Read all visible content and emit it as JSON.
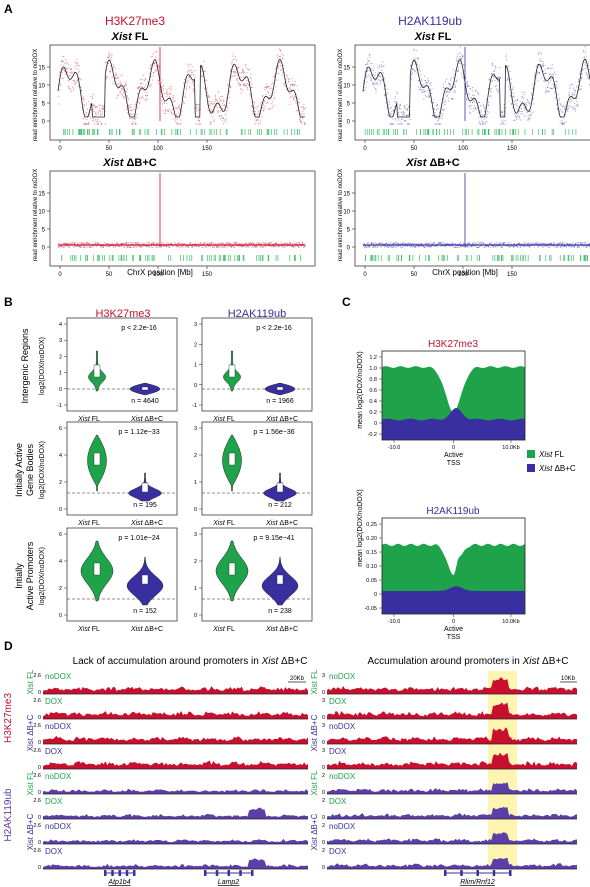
{
  "colors": {
    "red": "#c8102e",
    "blue": "#3a2fa0",
    "purple": "#5b3ea8",
    "green": "#1fa34a",
    "lightgreen": "#3fbf6a",
    "highlight": "#fff4b0"
  },
  "panelA": {
    "letter": "A",
    "h3k27me3": "H3K27me3",
    "h2ak119ub": "H2AK119ub",
    "xist": "Xist",
    "fl": " FL",
    "db": " ΔB+C",
    "ylabel": "read enrichment relative to noDOX",
    "xlabel": "ChrX position [Mb]",
    "xticks": [
      "0",
      "50",
      "100",
      "150"
    ],
    "yticks_top": [
      "0",
      "5",
      "10",
      "15"
    ],
    "yticks_bottom": [
      "0",
      "5",
      "10",
      "15"
    ]
  },
  "panelB": {
    "letter": "B",
    "h3k27me3": "H3K27me3",
    "h2ak119ub": "H2AK119ub",
    "ylabel": "log2(DOX/noDOX)",
    "rows": [
      {
        "label1": "Intergenic Regions",
        "label2": "",
        "left": {
          "p": "p < 2.2e-16",
          "n": "n = 4640",
          "ticks": [
            "-1",
            "0",
            "1",
            "2",
            "3",
            "4"
          ]
        },
        "right": {
          "p": "p < 2.2e-16",
          "n": "n = 1966",
          "ticks": [
            "-1",
            "0",
            "1",
            "2",
            "3"
          ]
        }
      },
      {
        "label1": "Initially Active",
        "label2": "Gene Bodies",
        "left": {
          "p": "p = 1.12e−33",
          "n": "n = 195",
          "ticks": [
            "0",
            "2",
            "4",
            "6"
          ]
        },
        "right": {
          "p": "p = 1.56e−36",
          "n": "n = 212",
          "ticks": [
            "0",
            "1",
            "2",
            "3"
          ]
        }
      },
      {
        "label1": "Intially",
        "label2": "Active Promoters",
        "left": {
          "p": "p = 1.01e−24",
          "n": "n = 152",
          "ticks": [
            "0",
            "2",
            "4",
            "6"
          ]
        },
        "right": {
          "p": "p = 9.15e−41",
          "n": "n = 238",
          "ticks": [
            "0",
            "1",
            "2",
            "3"
          ]
        }
      }
    ],
    "xl1": "Xist",
    "xl1b": " FL",
    "xl2": "Xist",
    "xl2b": " ΔB+C"
  },
  "panelC": {
    "letter": "C",
    "top_title": "H3K27me3",
    "bottom_title": "H2AK119ub",
    "ylabel": "mean log2(DOX/noDOX)",
    "top_yticks": [
      "1.2",
      "1.0",
      "0.8",
      "0.6",
      "0.4",
      "0.2",
      "0",
      "-0.2"
    ],
    "bottom_yticks": [
      "0.25",
      "0.20",
      "0.15",
      "0.10",
      "0.05",
      "0",
      "-0.05"
    ],
    "xtick_left": "-10.0",
    "xtick_mid": "0",
    "xtick_right": "10.0Kb",
    "tss1": "Active",
    "tss2": "TSS",
    "legend": [
      {
        "xist": "Xist",
        "label": " FL"
      },
      {
        "xist": "Xist",
        "label": " ΔB+C"
      }
    ]
  },
  "panelD": {
    "letter": "D",
    "left_title_a": "Lack of accumulation around promoters in ",
    "left_title_b": "Xist",
    "left_title_c": " ΔB+C",
    "right_title_a": "Accumulation around promoters in ",
    "right_title_b": "Xist",
    "right_title_c": " ΔB+C",
    "h3k27me3": "H3K27me3",
    "h2ak119ub": "H2AK119ub",
    "xist_fl": "Xist FL",
    "xist_db": "Xist ΔB+C",
    "noDOX": "noDOX",
    "DOX": "DOX",
    "scale_left": "2.6",
    "scale_right": "3",
    "scale_right_b": "2",
    "zero": "0",
    "bar_left": "20Kb",
    "bar_right": "10Kb",
    "gene1": "Atp1b4",
    "gene2": "Lamp2",
    "gene3": "Rlim/Rnf12"
  }
}
